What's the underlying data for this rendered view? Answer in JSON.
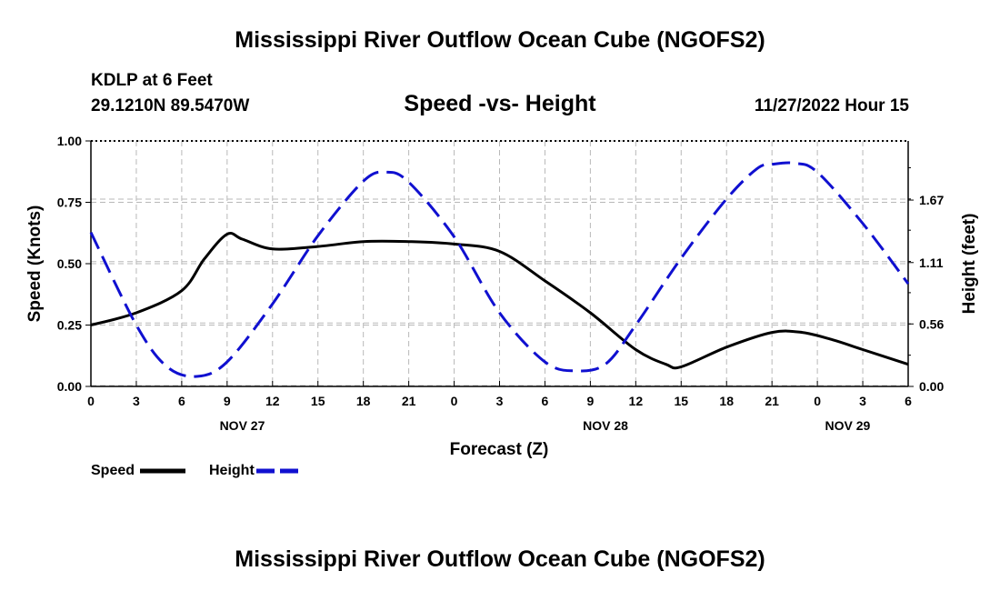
{
  "header": {
    "title": "Mississippi River Outflow Ocean Cube (NGOFS2)",
    "station": "KDLP at 6 Feet",
    "coords": "29.1210N  89.5470W",
    "subtitle": "Speed -vs- Height",
    "datetime": "11/27/2022 Hour 15",
    "footer_title": "Mississippi River Outflow Ocean Cube (NGOFS2)"
  },
  "legend": {
    "speed_label": "Speed",
    "height_label": "Height"
  },
  "colors": {
    "speed": "#000000",
    "height": "#1010d0",
    "grid": "#b8b8b8"
  },
  "chart_data": {
    "type": "line",
    "title": "Speed -vs- Height",
    "xlabel": "Forecast (Z)",
    "ylabel": "Speed (Knots)",
    "y2label": "Height (feet)",
    "x_range_hours": [
      0,
      54
    ],
    "x_tick_labels": [
      "0",
      "3",
      "6",
      "9",
      "12",
      "15",
      "18",
      "21",
      "0",
      "3",
      "6",
      "9",
      "12",
      "15",
      "18",
      "21",
      "0",
      "3",
      "6"
    ],
    "date_labels": [
      {
        "hour": 10,
        "text": "NOV 27"
      },
      {
        "hour": 34,
        "text": "NOV 28"
      },
      {
        "hour": 50,
        "text": "NOV 29"
      }
    ],
    "ylim": [
      0,
      1
    ],
    "y_ticks": [
      "0.00",
      "0.25",
      "0.50",
      "0.75",
      "1.00"
    ],
    "y2lim": [
      0,
      2.2
    ],
    "y2_ticks": [
      "0.00",
      "0.56",
      "1.11",
      "1.67"
    ],
    "series": [
      {
        "name": "Speed",
        "axis": "left",
        "style": "solid",
        "x": [
          0,
          3,
          6,
          7.5,
          9,
          10,
          12,
          15,
          18,
          21,
          24,
          27,
          30,
          33,
          36,
          38,
          39,
          42,
          45,
          47,
          49,
          51,
          54
        ],
        "values": [
          0.25,
          0.3,
          0.39,
          0.52,
          0.62,
          0.6,
          0.56,
          0.57,
          0.59,
          0.59,
          0.58,
          0.55,
          0.43,
          0.3,
          0.15,
          0.09,
          0.08,
          0.16,
          0.22,
          0.22,
          0.19,
          0.15,
          0.09
        ]
      },
      {
        "name": "Height",
        "axis": "right",
        "style": "dashed",
        "x": [
          0,
          3,
          5,
          7,
          9,
          12,
          15,
          18,
          19.5,
          21,
          24,
          27,
          30,
          32,
          34,
          36,
          39,
          42,
          44,
          45,
          46.5,
          48,
          51,
          54
        ],
        "values": [
          1.38,
          0.55,
          0.18,
          0.09,
          0.22,
          0.74,
          1.35,
          1.84,
          1.92,
          1.83,
          1.34,
          0.66,
          0.22,
          0.14,
          0.2,
          0.55,
          1.15,
          1.68,
          1.95,
          1.99,
          2.0,
          1.92,
          1.46,
          0.92
        ]
      }
    ]
  }
}
